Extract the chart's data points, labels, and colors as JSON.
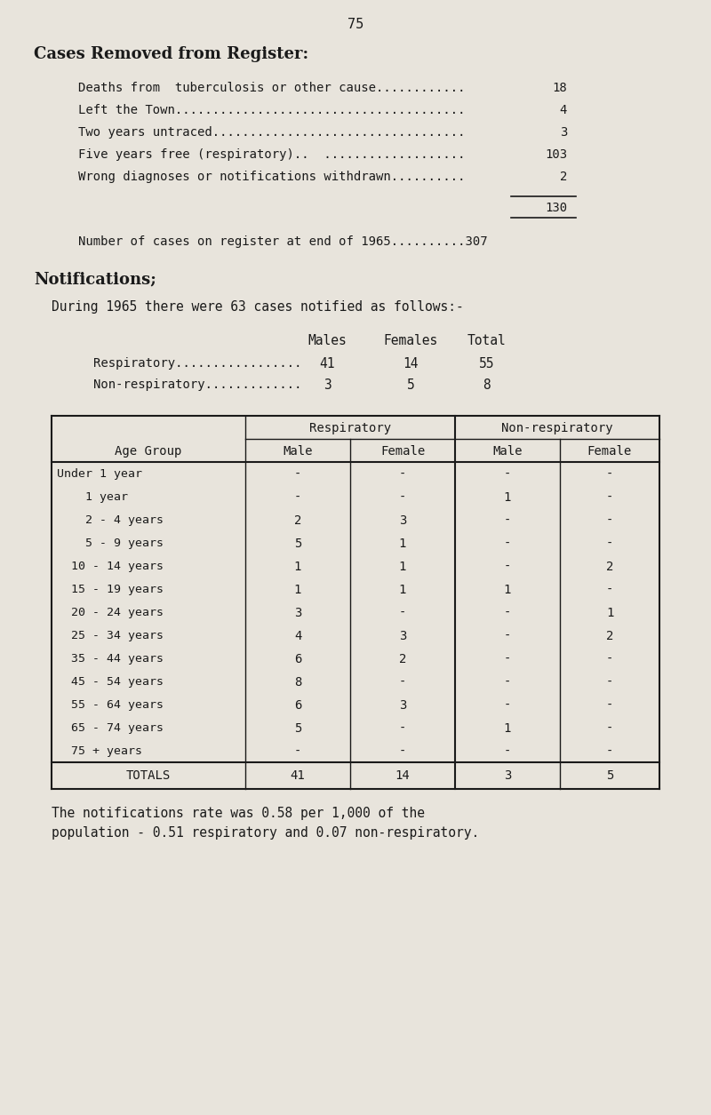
{
  "page_number": "75",
  "bg_color": "#e8e4dc",
  "text_color": "#1a1a1a",
  "section1_title": "Cases Removed from Register:",
  "section1_items": [
    {
      "label": "Deaths from  tuberculosis or other cause............",
      "value": "18"
    },
    {
      "label": "Left the Town.......................................",
      "value": "4"
    },
    {
      "label": "Two years untraced..................................",
      "value": "3"
    },
    {
      "label": "Five years free (respiratory)..  ...................",
      "value": "103"
    },
    {
      "label": "Wrong diagnoses or notifications withdrawn..........",
      "value": "2"
    }
  ],
  "subtotal": "130",
  "register_line": "Number of cases on register at end of 1965..........307",
  "section2_title": "Notifications;",
  "section2_intro": "During 1965 there were 63 cases notified as follows:-",
  "summary_headers": [
    "Males",
    "Females",
    "Total"
  ],
  "summary_rows": [
    {
      "label": "Respiratory.................",
      "values": [
        "41",
        "14",
        "55"
      ]
    },
    {
      "label": "Non-respiratory.............",
      "values": [
        "3",
        "5",
        "8"
      ]
    }
  ],
  "age_groups": [
    "Under 1 year",
    "    1 year",
    "    2 - 4 years",
    "    5 - 9 years",
    "  10 - 14 years",
    "  15 - 19 years",
    "  20 - 24 years",
    "  25 - 34 years",
    "  35 - 44 years",
    "  45 - 54 years",
    "  55 - 64 years",
    "  65 - 74 years",
    "  75 + years"
  ],
  "table_data": [
    [
      "-",
      "-",
      "-",
      "-"
    ],
    [
      "-",
      "-",
      "1",
      "-"
    ],
    [
      "2",
      "3",
      "-",
      "-"
    ],
    [
      "5",
      "1",
      "-",
      "-"
    ],
    [
      "1",
      "1",
      "-",
      "2"
    ],
    [
      "1",
      "1",
      "1",
      "-"
    ],
    [
      "3",
      "-",
      "-",
      "1"
    ],
    [
      "4",
      "3",
      "-",
      "2"
    ],
    [
      "6",
      "2",
      "-",
      "-"
    ],
    [
      "8",
      "-",
      "-",
      "-"
    ],
    [
      "6",
      "3",
      "-",
      "-"
    ],
    [
      "5",
      "-",
      "1",
      "-"
    ],
    [
      "-",
      "-",
      "-",
      "-"
    ]
  ],
  "totals_row": [
    "41",
    "14",
    "3",
    "5"
  ],
  "footer_line1": "The notifications rate was 0.58 per 1,000 of the",
  "footer_line2": "population - 0.51 respiratory and 0.07 non-respiratory."
}
